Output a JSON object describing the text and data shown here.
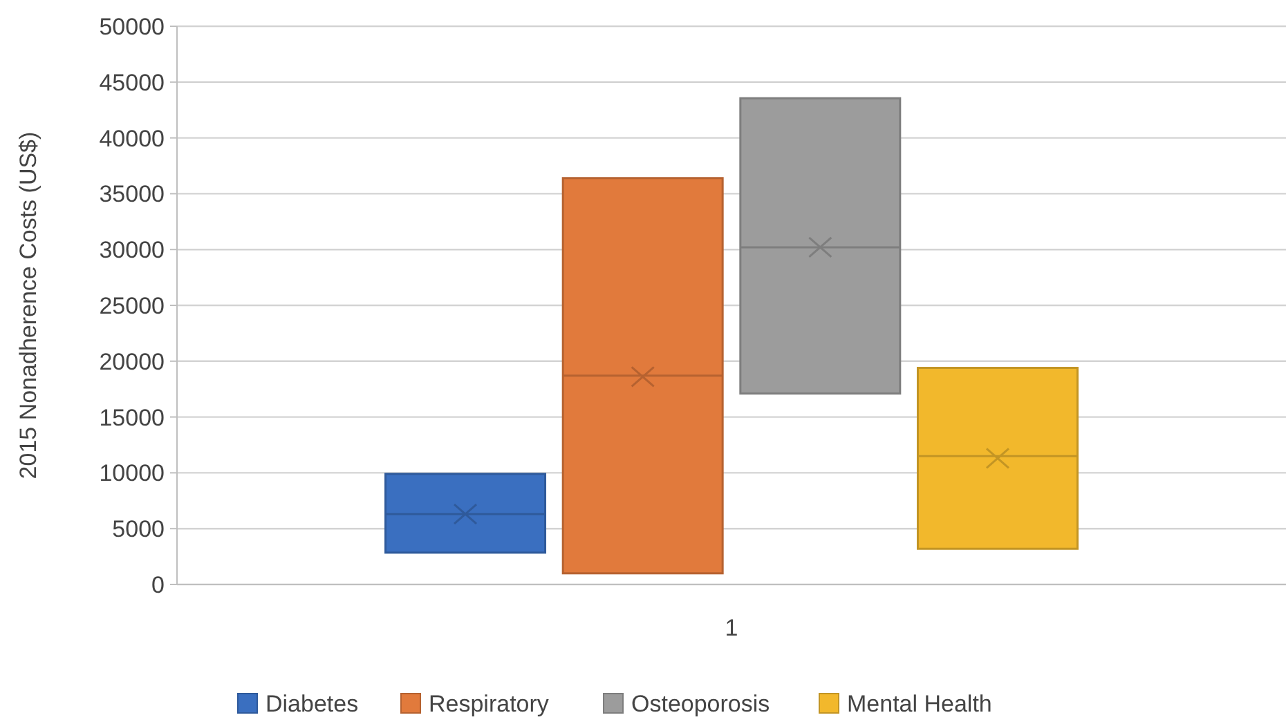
{
  "chart_data": {
    "type": "box",
    "ylabel": "2015 Nonadherence Costs (US$)",
    "categories": [
      "1"
    ],
    "ylim": [
      0,
      50000
    ],
    "yticks": [
      0,
      5000,
      10000,
      15000,
      20000,
      25000,
      30000,
      35000,
      40000,
      45000,
      50000
    ],
    "grid": "y",
    "legend": "bottom",
    "marker": "cross",
    "series": [
      {
        "name": "Diabetes",
        "color": "#3a6fc0",
        "boxes": [
          {
            "low": 2850,
            "q1": 2850,
            "median": 6300,
            "q3": 9900,
            "high": 9900,
            "mean": 6300
          }
        ]
      },
      {
        "name": "Respiratory",
        "color": "#e17a3c",
        "boxes": [
          {
            "low": 1000,
            "q1": 1000,
            "median": 18700,
            "q3": 36400,
            "high": 36400,
            "mean": 18600
          }
        ]
      },
      {
        "name": "Osteoporosis",
        "color": "#9c9c9c",
        "boxes": [
          {
            "low": 17100,
            "q1": 17100,
            "median": 30200,
            "q3": 43550,
            "high": 43550,
            "mean": 30200
          }
        ]
      },
      {
        "name": "Mental Health",
        "color": "#f2b82c",
        "boxes": [
          {
            "low": 3200,
            "q1": 3200,
            "median": 11500,
            "q3": 19400,
            "high": 19400,
            "mean": 11300
          }
        ]
      }
    ]
  }
}
